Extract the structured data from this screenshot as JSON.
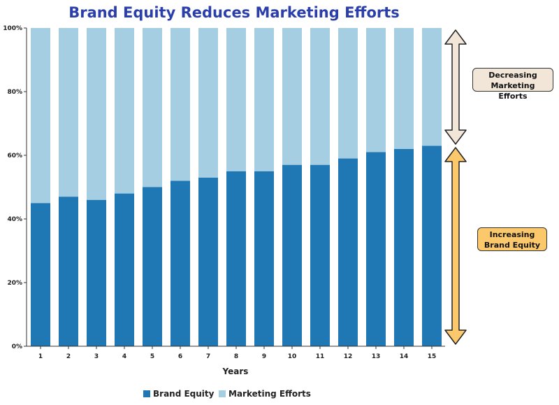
{
  "chart_data": {
    "type": "bar",
    "stacked": true,
    "title": "Brand Equity Reduces Marketing Efforts",
    "xlabel": "Years",
    "ylabel": "",
    "ylim": [
      0,
      100
    ],
    "y_ticks": [
      "0%",
      "20%",
      "40%",
      "60%",
      "80%",
      "100%"
    ],
    "categories": [
      "1",
      "2",
      "3",
      "4",
      "5",
      "6",
      "7",
      "8",
      "9",
      "10",
      "11",
      "12",
      "13",
      "14",
      "15"
    ],
    "series": [
      {
        "name": "Brand Equity",
        "color": "#1f77b4",
        "values": [
          45,
          47,
          46,
          48,
          50,
          52,
          53,
          55,
          55,
          57,
          57,
          59,
          61,
          62,
          63
        ]
      },
      {
        "name": "Marketing Efforts",
        "color": "#a6cee3",
        "values": [
          55,
          53,
          54,
          52,
          50,
          48,
          47,
          45,
          45,
          43,
          43,
          41,
          39,
          38,
          37
        ]
      }
    ],
    "legend_position": "bottom",
    "grid": false
  },
  "annotations": {
    "decreasing": {
      "text": "Decreasing Marketing Efforts",
      "color": "#f2e6d8"
    },
    "increasing": {
      "text": "Increasing Brand Equity",
      "color": "#fbc86b"
    }
  }
}
